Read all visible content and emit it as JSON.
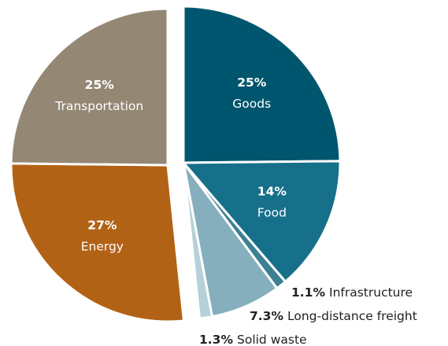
{
  "chart_data": {
    "type": "pie",
    "categories": [
      "Goods",
      "Food",
      "Infrastructure",
      "Long-distance freight",
      "Solid waste",
      "Energy",
      "Transportation"
    ],
    "values": [
      25,
      14,
      1.1,
      7.3,
      1.3,
      27,
      25
    ],
    "value_labels": [
      "25%",
      "14%",
      "1.1%",
      "7.3%",
      "1.3%",
      "27%",
      "25%"
    ],
    "colors": [
      "#00566e",
      "#17708a",
      "#3d7f93",
      "#86afbd",
      "#b5d0d9",
      "#b26215",
      "#948774"
    ]
  }
}
